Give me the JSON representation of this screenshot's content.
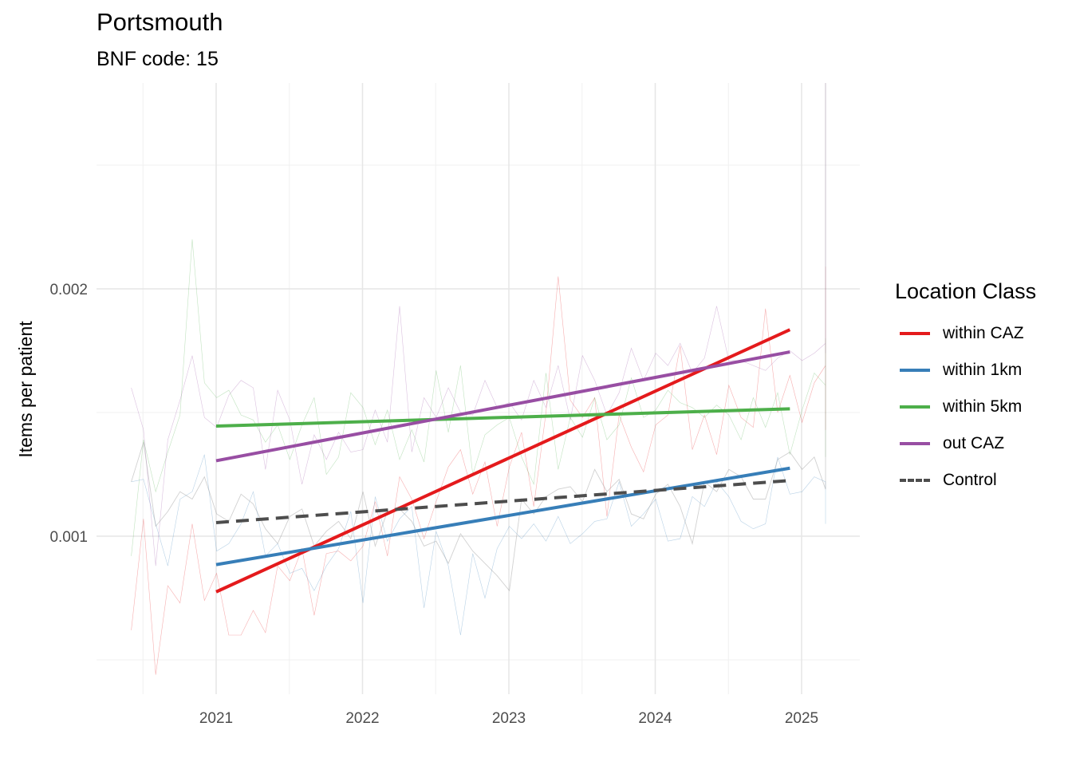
{
  "chart_data": {
    "type": "line",
    "title": "Portsmouth",
    "subtitle": "BNF code: 15",
    "xlabel": "",
    "ylabel": "Items per patient",
    "xlim": [
      2020.42,
      2025.4
    ],
    "ylim": [
      0.00047,
      0.00287
    ],
    "x_ticks": [
      2021,
      2022,
      2023,
      2024,
      2025
    ],
    "x_tick_labels": [
      "2021",
      "2022",
      "2023",
      "2024",
      "2025"
    ],
    "y_ticks": [
      0.001,
      0.002
    ],
    "y_tick_labels": [
      "0.001",
      "0.002"
    ],
    "grid": true,
    "legend": {
      "title": "Location Class",
      "position": "right",
      "entries": [
        {
          "label": "within CAZ",
          "color": "#e41a1c",
          "dash": false
        },
        {
          "label": "within 1km",
          "color": "#377eb8",
          "dash": false
        },
        {
          "label": "within 5km",
          "color": "#4daf4a",
          "dash": false
        },
        {
          "label": "out CAZ",
          "color": "#984ea3",
          "dash": false
        },
        {
          "label": "Control",
          "color": "#4d4d4d",
          "dash": true
        }
      ]
    },
    "trend_lines": [
      {
        "name": "within CAZ",
        "color": "#e41a1c",
        "x": [
          2021.0,
          2024.92
        ],
        "y": [
          0.000775,
          0.001835
        ]
      },
      {
        "name": "within 1km",
        "color": "#377eb8",
        "x": [
          2021.0,
          2024.92
        ],
        "y": [
          0.000885,
          0.001275
        ]
      },
      {
        "name": "within 5km",
        "color": "#4daf4a",
        "x": [
          2021.0,
          2024.92
        ],
        "y": [
          0.001445,
          0.001515
        ]
      },
      {
        "name": "out CAZ",
        "color": "#984ea3",
        "x": [
          2021.0,
          2024.92
        ],
        "y": [
          0.001305,
          0.001745
        ]
      },
      {
        "name": "Control",
        "color": "#4d4d4d",
        "dash": true,
        "x": [
          2021.0,
          2024.92
        ],
        "y": [
          0.001055,
          0.001225
        ]
      }
    ],
    "raw_series": [
      {
        "name": "within CAZ",
        "color": "#e41a1c",
        "x0": 2020.42,
        "step": 0.08333,
        "values": [
          0.00062,
          0.00107,
          0.00044,
          0.0008,
          0.00073,
          0.00105,
          0.00074,
          0.00085,
          0.0006,
          0.0006,
          0.0007,
          0.00061,
          0.00088,
          0.00082,
          0.00095,
          0.00068,
          0.00093,
          0.00094,
          0.0009,
          0.00096,
          0.00114,
          0.00092,
          0.00124,
          0.00115,
          0.00099,
          0.00114,
          0.00128,
          0.00135,
          0.00117,
          0.0013,
          0.00104,
          0.00128,
          0.00142,
          0.00112,
          0.0015,
          0.00205,
          0.00155,
          0.00148,
          0.00156,
          0.00108,
          0.00149,
          0.00136,
          0.00126,
          0.00145,
          0.00149,
          0.00177,
          0.00135,
          0.00149,
          0.00133,
          0.00161,
          0.00148,
          0.00144,
          0.00192,
          0.0015,
          0.00165,
          0.00146,
          0.00162,
          0.00169,
          0.00183,
          0.00152,
          0.00175,
          0.0015,
          0.00209,
          0.0015,
          0.00143
        ]
      },
      {
        "name": "within 1km",
        "color": "#377eb8",
        "x0": 2020.42,
        "step": 0.08333,
        "values": [
          0.00122,
          0.00123,
          0.00105,
          0.00088,
          0.00115,
          0.00118,
          0.00133,
          0.00094,
          0.00097,
          0.00105,
          0.00118,
          0.00092,
          0.00097,
          0.00085,
          0.00087,
          0.00078,
          0.00088,
          0.00095,
          0.0011,
          0.00073,
          0.00116,
          0.00098,
          0.00107,
          0.00112,
          0.00071,
          0.00102,
          0.00088,
          0.0006,
          0.00093,
          0.00075,
          0.00095,
          0.00104,
          0.00099,
          0.00105,
          0.00098,
          0.00108,
          0.00097,
          0.00101,
          0.00106,
          0.00107,
          0.00122,
          0.00104,
          0.00109,
          0.00115,
          0.00098,
          0.00099,
          0.00116,
          0.00112,
          0.00122,
          0.00116,
          0.00106,
          0.00103,
          0.00105,
          0.00132,
          0.00117,
          0.00118,
          0.00124,
          0.00122,
          0.00118,
          0.00105,
          0.00108,
          0.00113,
          0.00114,
          0.00114
        ]
      },
      {
        "name": "within 5km",
        "color": "#4daf4a",
        "x0": 2020.42,
        "step": 0.08333,
        "values": [
          0.00092,
          0.00139,
          0.00118,
          0.00134,
          0.00149,
          0.0022,
          0.00162,
          0.00156,
          0.00159,
          0.00149,
          0.00147,
          0.00138,
          0.00145,
          0.00131,
          0.00145,
          0.00156,
          0.00125,
          0.00132,
          0.00158,
          0.00152,
          0.00137,
          0.00151,
          0.00131,
          0.00143,
          0.0013,
          0.00167,
          0.00142,
          0.00169,
          0.00125,
          0.00141,
          0.00145,
          0.00148,
          0.00132,
          0.00121,
          0.00166,
          0.00127,
          0.00148,
          0.0014,
          0.00156,
          0.00139,
          0.00145,
          0.00164,
          0.00148,
          0.00151,
          0.00159,
          0.00154,
          0.00152,
          0.00148,
          0.00153,
          0.00149,
          0.00139,
          0.00156,
          0.00144,
          0.00158,
          0.00133,
          0.00151,
          0.00166,
          0.00161,
          0.0018,
          0.00132,
          0.00159,
          0.00147,
          0.00154,
          0.00151,
          0.00146
        ]
      },
      {
        "name": "out CAZ",
        "color": "#984ea3",
        "x0": 2020.42,
        "step": 0.08333,
        "values": [
          0.0016,
          0.00143,
          0.00088,
          0.00139,
          0.00155,
          0.00173,
          0.00148,
          0.00144,
          0.00157,
          0.00163,
          0.0016,
          0.00127,
          0.00159,
          0.00147,
          0.00121,
          0.00141,
          0.00131,
          0.00142,
          0.00134,
          0.00135,
          0.00151,
          0.00138,
          0.00193,
          0.00134,
          0.00156,
          0.00148,
          0.0016,
          0.0015,
          0.00149,
          0.00163,
          0.00152,
          0.00154,
          0.00147,
          0.00163,
          0.00152,
          0.00169,
          0.00147,
          0.00173,
          0.00163,
          0.00149,
          0.00158,
          0.00176,
          0.00163,
          0.00174,
          0.00169,
          0.00178,
          0.00166,
          0.00172,
          0.00193,
          0.00171,
          0.00171,
          0.00169,
          0.00167,
          0.00172,
          0.00175,
          0.00171,
          0.00174,
          0.00178,
          0.00181,
          0.00174,
          0.00219,
          0.00277,
          0.00225,
          0.00287
        ]
      },
      {
        "name": "Control",
        "color": "#999999",
        "x0": 2020.42,
        "step": 0.08333,
        "values": [
          0.00122,
          0.00138,
          0.00104,
          0.0011,
          0.00118,
          0.00115,
          0.00124,
          0.00109,
          0.00106,
          0.00117,
          0.00113,
          0.00103,
          0.00097,
          0.00108,
          0.00111,
          0.00096,
          0.00102,
          0.00106,
          0.00099,
          0.00118,
          0.00096,
          0.0011,
          0.00111,
          0.00106,
          0.00096,
          0.00098,
          0.00089,
          0.00101,
          0.00094,
          0.00089,
          0.00084,
          0.00078,
          0.00115,
          0.00109,
          0.00116,
          0.00119,
          0.0012,
          0.00114,
          0.00127,
          0.00118,
          0.00123,
          0.00109,
          0.00107,
          0.00117,
          0.00121,
          0.00112,
          0.00097,
          0.00122,
          0.00118,
          0.00127,
          0.00124,
          0.00115,
          0.00115,
          0.00131,
          0.00134,
          0.00127,
          0.00132,
          0.00119,
          0.00123,
          0.00145,
          0.00157,
          0.00223,
          0.00287,
          0.00287,
          0.00287,
          0.00287
        ]
      }
    ]
  }
}
